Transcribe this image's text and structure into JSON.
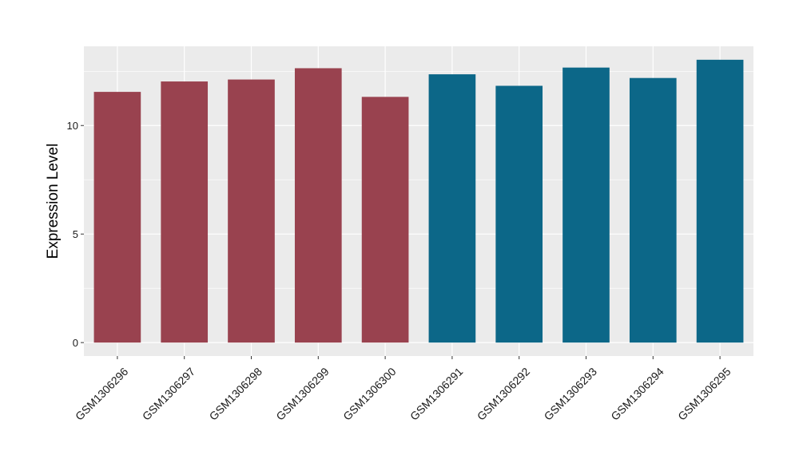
{
  "chart_data": {
    "type": "bar",
    "title": "",
    "xlabel": "",
    "ylabel": "Expression Level",
    "categories": [
      "GSM1306296",
      "GSM1306297",
      "GSM1306298",
      "GSM1306299",
      "GSM1306300",
      "GSM1306291",
      "GSM1306292",
      "GSM1306293",
      "GSM1306294",
      "GSM1306295"
    ],
    "values": [
      11.55,
      12.03,
      12.12,
      12.64,
      11.32,
      12.36,
      11.83,
      12.67,
      12.19,
      13.03
    ],
    "bar_colors": [
      "#99424f",
      "#99424f",
      "#99424f",
      "#99424f",
      "#99424f",
      "#0c6788",
      "#0c6788",
      "#0c6788",
      "#0c6788",
      "#0c6788"
    ],
    "ylim": [
      -0.62,
      13.65
    ],
    "yticks": [
      0,
      5,
      10
    ],
    "ytick_labels": [
      "0",
      "5",
      "10"
    ],
    "grid": true,
    "legend": "none",
    "panel_background": "#ebebeb",
    "grid_color": "#ffffff"
  }
}
